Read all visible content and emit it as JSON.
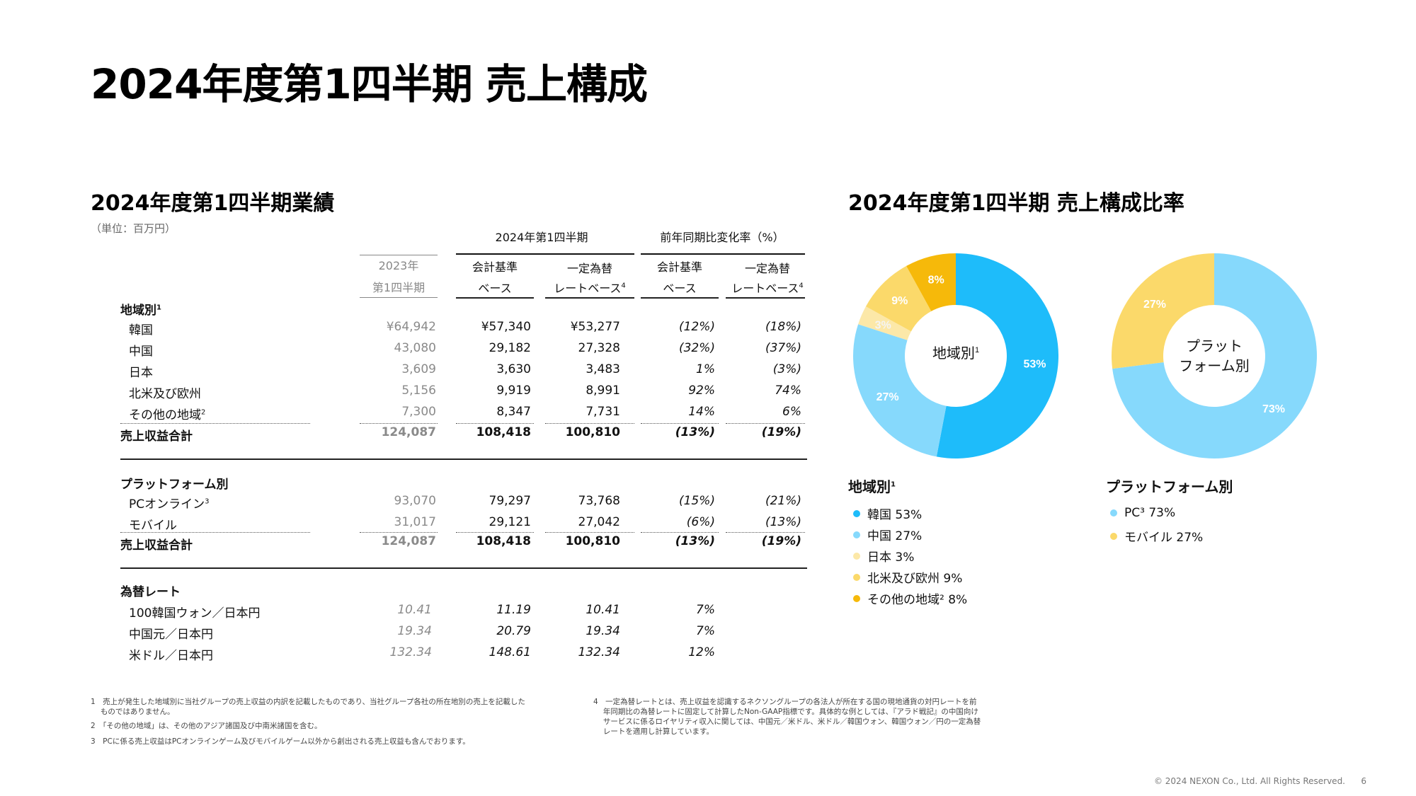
{
  "title": "2024年度第1四半期 売上構成",
  "table_title": "2024年度第1四半期業績",
  "unit": "（単位：百万円）",
  "headers": {
    "q_group": "2024年第1四半期",
    "yoy_group": "前年同期比変化率（%）",
    "prev_1": "2023年",
    "prev_2": "第1四半期",
    "acct_1": "会計基準",
    "acct_2": "ベース",
    "fx_1": "一定為替",
    "fx_2": "レートベース",
    "fx_sup": "4",
    "yacct_1": "会計基準",
    "yacct_2": "ベース",
    "yfx_1": "一定為替",
    "yfx_2": "レートベース",
    "yfx_sup": "4"
  },
  "region": {
    "label": "地域別",
    "sup": "1",
    "rows": [
      {
        "label": "韓国",
        "sup": "",
        "prev": "¥64,942",
        "acct": "¥57,340",
        "fx": "¥53,277",
        "yacct": "(12%)",
        "yfx": "(18%)"
      },
      {
        "label": "中国",
        "sup": "",
        "prev": "43,080",
        "acct": "29,182",
        "fx": "27,328",
        "yacct": "(32%)",
        "yfx": "(37%)"
      },
      {
        "label": "日本",
        "sup": "",
        "prev": "3,609",
        "acct": "3,630",
        "fx": "3,483",
        "yacct": "1%",
        "yfx": "(3%)"
      },
      {
        "label": "北米及び欧州",
        "sup": "",
        "prev": "5,156",
        "acct": "9,919",
        "fx": "8,991",
        "yacct": "92%",
        "yfx": "74%"
      },
      {
        "label": "その他の地域",
        "sup": "2",
        "prev": "7,300",
        "acct": "8,347",
        "fx": "7,731",
        "yacct": "14%",
        "yfx": "6%"
      }
    ],
    "total": {
      "label": "売上収益合計",
      "prev": "124,087",
      "acct": "108,418",
      "fx": "100,810",
      "yacct": "(13%)",
      "yfx": "(19%)"
    }
  },
  "platform": {
    "label": "プラットフォーム別",
    "rows": [
      {
        "label": "PCオンライン",
        "sup": "3",
        "prev": "93,070",
        "acct": "79,297",
        "fx": "73,768",
        "yacct": "(15%)",
        "yfx": "(21%)"
      },
      {
        "label": "モバイル",
        "sup": "",
        "prev": "31,017",
        "acct": "29,121",
        "fx": "27,042",
        "yacct": "(6%)",
        "yfx": "(13%)"
      }
    ],
    "total": {
      "label": "売上収益合計",
      "prev": "124,087",
      "acct": "108,418",
      "fx": "100,810",
      "yacct": "(13%)",
      "yfx": "(19%)"
    }
  },
  "fx_rates": {
    "label": "為替レート",
    "rows": [
      {
        "label": "100韓国ウォン／日本円",
        "prev": "10.41",
        "acct": "11.19",
        "fx": "10.41",
        "yacct": "7%"
      },
      {
        "label": "中国元／日本円",
        "prev": "19.34",
        "acct": "20.79",
        "fx": "19.34",
        "yacct": "7%"
      },
      {
        "label": "米ドル／日本円",
        "prev": "132.34",
        "acct": "148.61",
        "fx": "132.34",
        "yacct": "12%"
      }
    ]
  },
  "chart_title": "2024年度第1四半期 売上構成比率",
  "chart_data": [
    {
      "type": "pie",
      "title": "地域別",
      "title_sup": "1",
      "categories": [
        "韓国",
        "中国",
        "日本",
        "北米及び欧州",
        "その他の地域"
      ],
      "values": [
        53,
        27,
        3,
        9,
        8
      ],
      "labels": [
        "53%",
        "27%",
        "3%",
        "9%",
        "8%"
      ],
      "colors": [
        "#1ebcfa",
        "#86d9fc",
        "#fce8a8",
        "#fbd96a",
        "#f6b90a"
      ]
    },
    {
      "type": "pie",
      "title_line1": "プラット",
      "title_line2": "フォーム別",
      "categories": [
        "PC",
        "モバイル"
      ],
      "values": [
        73,
        27
      ],
      "labels": [
        "73%",
        "27%"
      ],
      "colors": [
        "#86d9fc",
        "#fbd96a"
      ]
    }
  ],
  "legend_region": {
    "title": "地域別",
    "sup": "1",
    "items": [
      {
        "label": "韓国 53%",
        "color": "#1ebcfa"
      },
      {
        "label": "中国 27%",
        "color": "#86d9fc"
      },
      {
        "label": "日本 3%",
        "color": "#fce8a8"
      },
      {
        "label": "北米及び欧州 9%",
        "color": "#fbd96a"
      },
      {
        "label": "その他の地域² 8%",
        "color": "#f6b90a"
      }
    ]
  },
  "legend_platform": {
    "title": "プラットフォーム別",
    "items": [
      {
        "label": "PC³ 73%",
        "color": "#86d9fc"
      },
      {
        "label": "モバイル 27%",
        "color": "#fbd96a"
      }
    ]
  },
  "footnotes": {
    "n1_a": "1　売上が発生した地域別に当社グループの売上収益の内訳を記載したものであり、当社グループ各社の所在地別の売上を記載した",
    "n1_b": "　 ものではありません。",
    "n2": "2　「その他の地域」は、その他のアジア諸国及び中南米諸国を含む。",
    "n3": "3　PCに係る売上収益はPCオンラインゲーム及びモバイルゲーム以外から創出される売上収益も含んでおります。",
    "n4_a": "4　一定為替レートとは、売上収益を認識するネクソングループの各法人が所在する国の現地通貨の対円レートを前",
    "n4_b": "　 年同期比の為替レートに固定して計算したNon-GAAP指標です。具体的な例としては、『アラド戦記』の中国向け",
    "n4_c": "　 サービスに係るロイヤリティ収入に関しては、中国元／米ドル、米ドル／韓国ウォン、韓国ウォン／円の一定為替",
    "n4_d": "　 レートを適用し計算しています。"
  },
  "copyright": "© 2024 NEXON Co., Ltd. All Rights Reserved.",
  "page_number": "6"
}
